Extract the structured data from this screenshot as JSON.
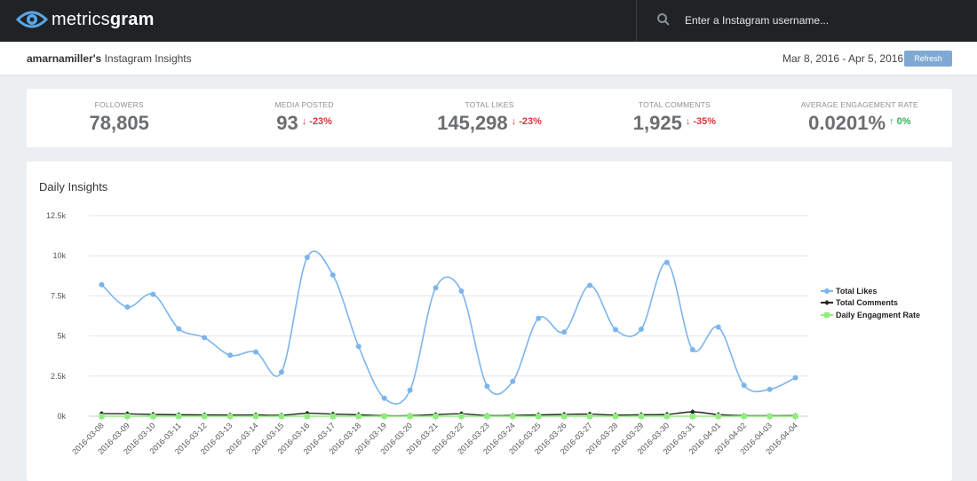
{
  "app": {
    "logo_light": "metrics",
    "logo_bold": "gram",
    "search": {
      "placeholder": "Enter a Instagram username..."
    }
  },
  "header": {
    "username": "amarnamiller's",
    "title_suffix": "Instagram Insights",
    "date_range": "Mar 8, 2016 - Apr 5, 2016",
    "refresh_label": "Refresh"
  },
  "stats": [
    {
      "label": "FOLLOWERS",
      "value": "78,805",
      "change": "",
      "direction": "none"
    },
    {
      "label": "MEDIA POSTED",
      "value": "93",
      "change": "-23%",
      "direction": "down"
    },
    {
      "label": "TOTAL LIKES",
      "value": "145,298",
      "change": "-23%",
      "direction": "down"
    },
    {
      "label": "TOTAL COMMENTS",
      "value": "1,925",
      "change": "-35%",
      "direction": "down"
    },
    {
      "label": "AVERAGE ENGAGEMENT RATE",
      "value": "0.0201%",
      "change": "0%",
      "direction": "up"
    }
  ],
  "colors": {
    "likes": "#7cb5ec",
    "comments": "#222222",
    "engagement": "#90ed7d",
    "down": "#d9363b",
    "up": "#2eb35a"
  },
  "chart_title": "Daily Insights",
  "chart_data": {
    "type": "line",
    "title": "Daily Insights",
    "xlabel": "",
    "ylabel": "",
    "ylim": [
      0,
      12500
    ],
    "y_ticks": [
      0,
      2500,
      5000,
      7500,
      10000,
      12500
    ],
    "y_tick_labels": [
      "0k",
      "2.5k",
      "5k",
      "7.5k",
      "10k",
      "12.5k"
    ],
    "grid": true,
    "legend": "right",
    "x": [
      "2016-03-08",
      "2016-03-09",
      "2016-03-10",
      "2016-03-11",
      "2016-03-12",
      "2016-03-13",
      "2016-03-14",
      "2016-03-15",
      "2016-03-16",
      "2016-03-17",
      "2016-03-18",
      "2016-03-19",
      "2016-03-20",
      "2016-03-21",
      "2016-03-22",
      "2016-03-23",
      "2016-03-24",
      "2016-03-25",
      "2016-03-26",
      "2016-03-27",
      "2016-03-28",
      "2016-03-29",
      "2016-03-30",
      "2016-03-31",
      "2016-04-01",
      "2016-04-02",
      "2016-04-03",
      "2016-04-04"
    ],
    "series": [
      {
        "name": "Total Likes",
        "values": [
          8200,
          6800,
          7600,
          5450,
          4900,
          3800,
          4000,
          2750,
          9900,
          8800,
          4350,
          1120,
          1620,
          8000,
          7800,
          1870,
          2170,
          6100,
          5250,
          8150,
          5400,
          5420,
          9580,
          4150,
          5550,
          1930,
          1670,
          2400
        ]
      },
      {
        "name": "Total Comments",
        "values": [
          160,
          150,
          110,
          90,
          80,
          70,
          80,
          60,
          180,
          130,
          90,
          30,
          40,
          100,
          150,
          40,
          50,
          80,
          110,
          130,
          70,
          90,
          110,
          270,
          100,
          40,
          30,
          40
        ]
      },
      {
        "name": "Daily Engagment Rate",
        "values": [
          0,
          0,
          0,
          0,
          0,
          0,
          0,
          0,
          0,
          0,
          0,
          0,
          0,
          0,
          0,
          0,
          0,
          0,
          0,
          0,
          0,
          0,
          0,
          0,
          0,
          0,
          0,
          0
        ]
      }
    ]
  }
}
